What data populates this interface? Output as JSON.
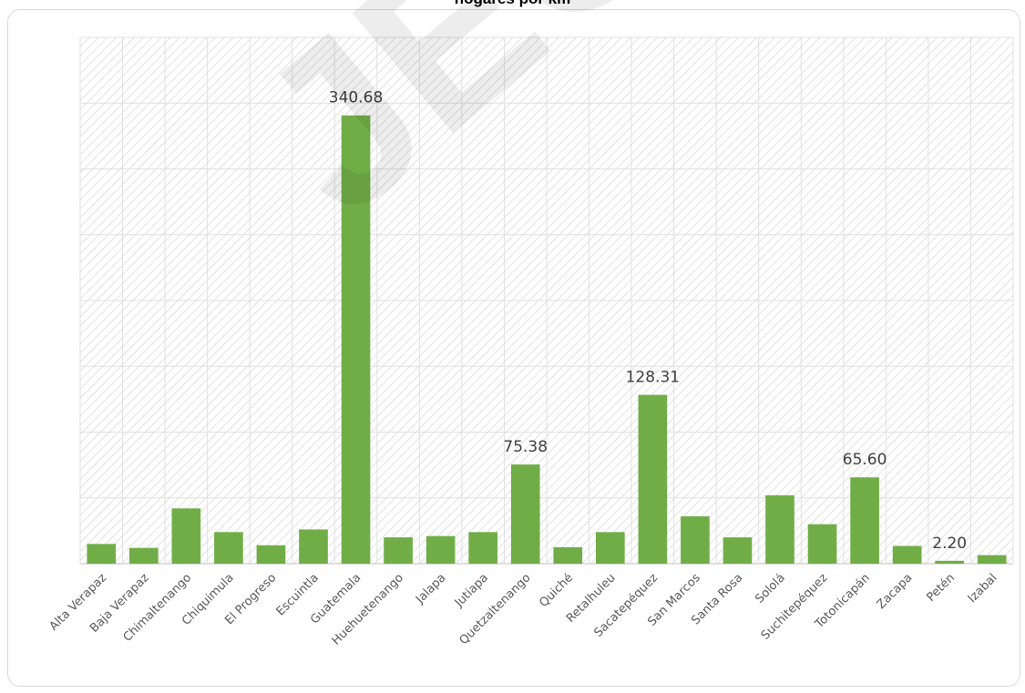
{
  "chart_data": {
    "type": "bar",
    "title": "hogares por km",
    "categories": [
      "Alta Verapaz",
      "Baja Verapaz",
      "Chimaltenango",
      "Chiquimula",
      "El Progreso",
      "Escuintla",
      "Guatemala",
      "Huehuetenango",
      "Jalapa",
      "Jutiapa",
      "Quetzaltenango",
      "Quiché",
      "Retalhuleu",
      "Sacatepéquez",
      "San Marcos",
      "Santa Rosa",
      "Sololá",
      "Suchitepéquez",
      "Totonicapán",
      "Zacapa",
      "Petén",
      "Izabal"
    ],
    "values": [
      15.0,
      12.0,
      42.0,
      24.0,
      14.0,
      26.0,
      340.68,
      20.0,
      21.0,
      24.0,
      75.38,
      12.5,
      24.0,
      128.31,
      36.0,
      20.0,
      52.0,
      30.0,
      65.6,
      13.5,
      2.2,
      6.5
    ],
    "data_labels": [
      {
        "index": 6,
        "text": "340.68"
      },
      {
        "index": 10,
        "text": "75.38"
      },
      {
        "index": 13,
        "text": "128.31"
      },
      {
        "index": 18,
        "text": "65.60"
      },
      {
        "index": 20,
        "text": "2.20"
      }
    ],
    "ylim": [
      0,
      400
    ],
    "grid": true,
    "bar_color": "#70ad47"
  },
  "watermark": "JEGT"
}
